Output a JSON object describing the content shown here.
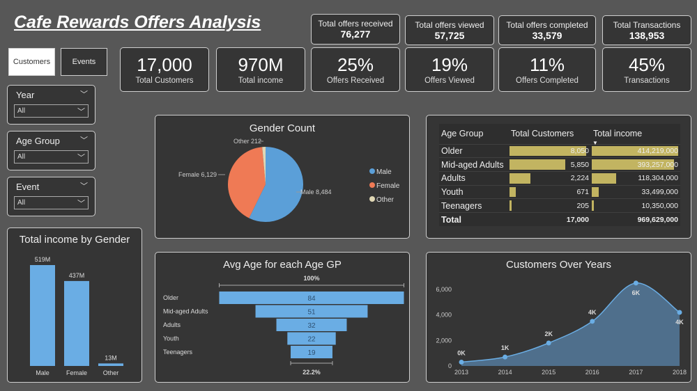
{
  "title": "Cafe Rewards Offers Analysis",
  "tabs": [
    {
      "label": "Customers",
      "active": true
    },
    {
      "label": "Events",
      "active": false
    }
  ],
  "top_cards": [
    {
      "label": "Total offers received",
      "value": "76,277"
    },
    {
      "label": "Total offers viewed",
      "value": "57,725"
    },
    {
      "label": "Total offers completed",
      "value": "33,579"
    },
    {
      "label": "Total Transactions",
      "value": "138,953"
    }
  ],
  "kpis": [
    {
      "value": "17,000",
      "label": "Total Customers"
    },
    {
      "value": "970M",
      "label": "Total income"
    },
    {
      "value": "25%",
      "label": "Offers Received"
    },
    {
      "value": "19%",
      "label": "Offers Viewed"
    },
    {
      "value": "11%",
      "label": "Offers Completed"
    },
    {
      "value": "45%",
      "label": "Transactions"
    }
  ],
  "slicers": [
    {
      "label": "Year",
      "value": "All"
    },
    {
      "label": "Age Group",
      "value": "All"
    },
    {
      "label": "Event",
      "value": "All"
    }
  ],
  "colors": {
    "background": "#575757",
    "card": "#353535",
    "blue": "#5b9fd8",
    "orange": "#ef7a55",
    "other": "#e0d7b4",
    "table_bar": "#c2b461"
  },
  "chart_data": [
    {
      "type": "bar",
      "title": "Total income by Gender",
      "categories": [
        "Male",
        "Female",
        "Other"
      ],
      "values": [
        519,
        437,
        13
      ],
      "labels": [
        "519M",
        "437M",
        "13M"
      ],
      "color": "#6aade4"
    },
    {
      "type": "pie",
      "title": "Gender Count",
      "categories": [
        "Male",
        "Female",
        "Other"
      ],
      "values": [
        8484,
        6129,
        212
      ],
      "data_labels": [
        "Male 8,484",
        "Female 6,129",
        "Other 212"
      ],
      "colors": [
        "#5b9fd8",
        "#ef7a55",
        "#e0d7b4"
      ],
      "legend": "right"
    },
    {
      "type": "table",
      "columns": [
        "Age Group",
        "Total Customers",
        "Total income"
      ],
      "sort": "Total income descending",
      "rows": [
        [
          "Older",
          "8,050",
          "414,219,000"
        ],
        [
          "Mid-aged Adults",
          "5,850",
          "393,257,000"
        ],
        [
          "Adults",
          "2,224",
          "118,304,000"
        ],
        [
          "Youth",
          "671",
          "33,499,000"
        ],
        [
          "Teenagers",
          "205",
          "10,350,000"
        ]
      ],
      "customers": [
        8050,
        5850,
        2224,
        671,
        205
      ],
      "income": [
        414219000,
        393257000,
        118304000,
        33499000,
        10350000
      ],
      "total": [
        "Total",
        "17,000",
        "969,629,000"
      ]
    },
    {
      "type": "funnel",
      "title": "Avg Age for each Age GP",
      "categories": [
        "Older",
        "Mid-aged Adults",
        "Adults",
        "Youth",
        "Teenagers"
      ],
      "values": [
        84,
        51,
        32,
        22,
        19
      ],
      "top_label": "100%",
      "bottom_label": "22.2%",
      "color": "#6aade4"
    },
    {
      "type": "area",
      "title": "Customers Over Years",
      "x": [
        2013,
        2014,
        2015,
        2016,
        2017,
        2018
      ],
      "values": [
        300,
        700,
        1800,
        3500,
        6500,
        4200
      ],
      "data_labels": [
        "0K",
        "1K",
        "2K",
        "4K",
        "6K",
        "4K"
      ],
      "yticks": [
        "0",
        "2,000",
        "4,000",
        "6,000"
      ],
      "ylim": [
        0,
        6500
      ],
      "grid": false,
      "color": "#6aade4"
    }
  ]
}
